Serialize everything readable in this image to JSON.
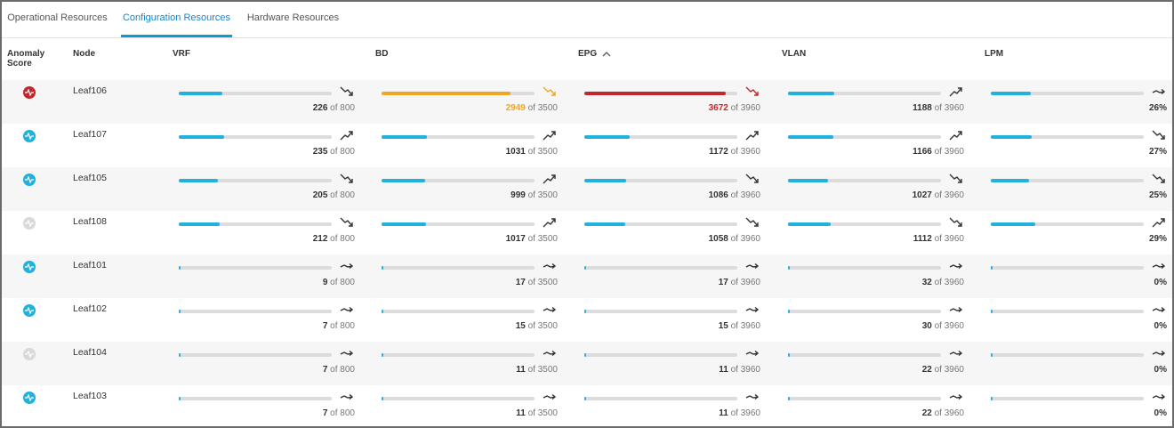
{
  "tabs": [
    {
      "label": "Operational Resources",
      "active": false
    },
    {
      "label": "Configuration Resources",
      "active": true
    },
    {
      "label": "Hardware Resources",
      "active": false
    }
  ],
  "columns": {
    "anomaly": "Anomaly Score",
    "node": "Node",
    "vrf": "VRF",
    "bd": "BD",
    "epg": "EPG",
    "vlan": "VLAN",
    "lpm": "LPM"
  },
  "sort_icon": "chevron-up-icon",
  "of_label": "of",
  "colors": {
    "normal": "#22b0de",
    "warning": "#f2a51e",
    "critical": "#c1272d",
    "unknown": "#d9d9d9",
    "track": "#dcdcdc"
  },
  "rows": [
    {
      "node": "Leaf106",
      "anomaly": "critical",
      "vrf": {
        "value": "226",
        "max": "800",
        "trend": "down",
        "status": "normal"
      },
      "bd": {
        "value": "2949",
        "max": "3500",
        "trend": "down",
        "status": "warning"
      },
      "epg": {
        "value": "3672",
        "max": "3960",
        "trend": "down",
        "status": "critical"
      },
      "vlan": {
        "value": "1188",
        "max": "3960",
        "trend": "up",
        "status": "normal"
      },
      "lpm": {
        "value": "26%",
        "pct": 26,
        "trend": "flat",
        "status": "normal"
      }
    },
    {
      "node": "Leaf107",
      "anomaly": "normal",
      "vrf": {
        "value": "235",
        "max": "800",
        "trend": "up",
        "status": "normal"
      },
      "bd": {
        "value": "1031",
        "max": "3500",
        "trend": "up",
        "status": "normal"
      },
      "epg": {
        "value": "1172",
        "max": "3960",
        "trend": "up",
        "status": "normal"
      },
      "vlan": {
        "value": "1166",
        "max": "3960",
        "trend": "up",
        "status": "normal"
      },
      "lpm": {
        "value": "27%",
        "pct": 27,
        "trend": "down",
        "status": "normal"
      }
    },
    {
      "node": "Leaf105",
      "anomaly": "normal",
      "vrf": {
        "value": "205",
        "max": "800",
        "trend": "down",
        "status": "normal"
      },
      "bd": {
        "value": "999",
        "max": "3500",
        "trend": "up",
        "status": "normal"
      },
      "epg": {
        "value": "1086",
        "max": "3960",
        "trend": "down",
        "status": "normal"
      },
      "vlan": {
        "value": "1027",
        "max": "3960",
        "trend": "down",
        "status": "normal"
      },
      "lpm": {
        "value": "25%",
        "pct": 25,
        "trend": "down",
        "status": "normal"
      }
    },
    {
      "node": "Leaf108",
      "anomaly": "unknown",
      "vrf": {
        "value": "212",
        "max": "800",
        "trend": "down",
        "status": "normal"
      },
      "bd": {
        "value": "1017",
        "max": "3500",
        "trend": "up",
        "status": "normal"
      },
      "epg": {
        "value": "1058",
        "max": "3960",
        "trend": "down",
        "status": "normal"
      },
      "vlan": {
        "value": "1112",
        "max": "3960",
        "trend": "down",
        "status": "normal"
      },
      "lpm": {
        "value": "29%",
        "pct": 29,
        "trend": "up",
        "status": "normal"
      }
    },
    {
      "node": "Leaf101",
      "anomaly": "normal",
      "vrf": {
        "value": "9",
        "max": "800",
        "trend": "flat",
        "status": "normal"
      },
      "bd": {
        "value": "17",
        "max": "3500",
        "trend": "flat",
        "status": "normal"
      },
      "epg": {
        "value": "17",
        "max": "3960",
        "trend": "flat",
        "status": "normal"
      },
      "vlan": {
        "value": "32",
        "max": "3960",
        "trend": "flat",
        "status": "normal"
      },
      "lpm": {
        "value": "0%",
        "pct": 0,
        "trend": "flat",
        "status": "normal"
      }
    },
    {
      "node": "Leaf102",
      "anomaly": "normal",
      "vrf": {
        "value": "7",
        "max": "800",
        "trend": "flat",
        "status": "normal"
      },
      "bd": {
        "value": "15",
        "max": "3500",
        "trend": "flat",
        "status": "normal"
      },
      "epg": {
        "value": "15",
        "max": "3960",
        "trend": "flat",
        "status": "normal"
      },
      "vlan": {
        "value": "30",
        "max": "3960",
        "trend": "flat",
        "status": "normal"
      },
      "lpm": {
        "value": "0%",
        "pct": 0,
        "trend": "flat",
        "status": "normal"
      }
    },
    {
      "node": "Leaf104",
      "anomaly": "unknown",
      "vrf": {
        "value": "7",
        "max": "800",
        "trend": "flat",
        "status": "normal"
      },
      "bd": {
        "value": "11",
        "max": "3500",
        "trend": "flat",
        "status": "normal"
      },
      "epg": {
        "value": "11",
        "max": "3960",
        "trend": "flat",
        "status": "normal"
      },
      "vlan": {
        "value": "22",
        "max": "3960",
        "trend": "flat",
        "status": "normal"
      },
      "lpm": {
        "value": "0%",
        "pct": 0,
        "trend": "flat",
        "status": "normal"
      }
    },
    {
      "node": "Leaf103",
      "anomaly": "normal",
      "vrf": {
        "value": "7",
        "max": "800",
        "trend": "flat",
        "status": "normal"
      },
      "bd": {
        "value": "11",
        "max": "3500",
        "trend": "flat",
        "status": "normal"
      },
      "epg": {
        "value": "11",
        "max": "3960",
        "trend": "flat",
        "status": "normal"
      },
      "vlan": {
        "value": "22",
        "max": "3960",
        "trend": "flat",
        "status": "normal"
      },
      "lpm": {
        "value": "0%",
        "pct": 0,
        "trend": "flat",
        "status": "normal"
      }
    }
  ]
}
